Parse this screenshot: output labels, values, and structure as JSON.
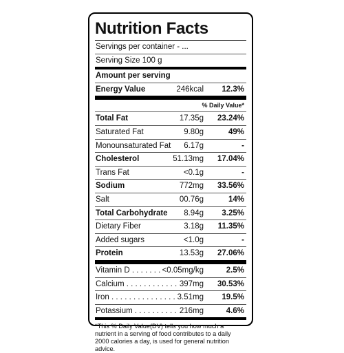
{
  "title": "Nutrition Facts",
  "servings_per_container": "Servings per container - ...",
  "serving_size": "Serving Size  100 g",
  "amount_per_serving": "Amount per serving",
  "energy": {
    "name": "Energy Value",
    "amount": "246kcal",
    "dv": "12.3%"
  },
  "daily_value_header": "% Daily Value*",
  "nutrients": [
    {
      "name": "Total Fat",
      "amount": "17.35g",
      "dv": "23.24%"
    },
    {
      "name": "Saturated Fat",
      "amount": "9.80g",
      "dv": "49%"
    },
    {
      "name": "Monounsaturated Fat",
      "amount": "6.17g",
      "dv": "-"
    },
    {
      "name": "Cholesterol",
      "amount": "51.13mg",
      "dv": "17.04%"
    },
    {
      "name": "Trans Fat",
      "amount": "<0.1g",
      "dv": "-"
    },
    {
      "name": "Sodium",
      "amount": "772mg",
      "dv": "33.56%"
    },
    {
      "name": "Salt",
      "amount": "00.76g",
      "dv": "14%"
    },
    {
      "name": "Total Carbohydrate",
      "amount": "8.94g",
      "dv": "3.25%"
    },
    {
      "name": "Dietary Fiber",
      "amount": "3.18g",
      "dv": "11.35%"
    },
    {
      "name": "Added sugars",
      "amount": "<1.0g",
      "dv": "-"
    },
    {
      "name": "Protein",
      "amount": "13.53g",
      "dv": "27.06%"
    }
  ],
  "vitamins": [
    {
      "name": "Vitamin D",
      "amount": "<0.05mg/kg",
      "dv": "2.5%"
    },
    {
      "name": "Calcium",
      "amount": "397mg",
      "dv": "30.53%"
    },
    {
      "name": "Iron",
      "amount": "3.51mg",
      "dv": "19.5%"
    },
    {
      "name": "Potassium",
      "amount": "216mg",
      "dv": "4.6%"
    }
  ],
  "footnote": "*This % Daily Value(DV) tells you how much a nutrient in a serving of food contributes to a daily 2000 calories a day, is used for general nutrition advice."
}
